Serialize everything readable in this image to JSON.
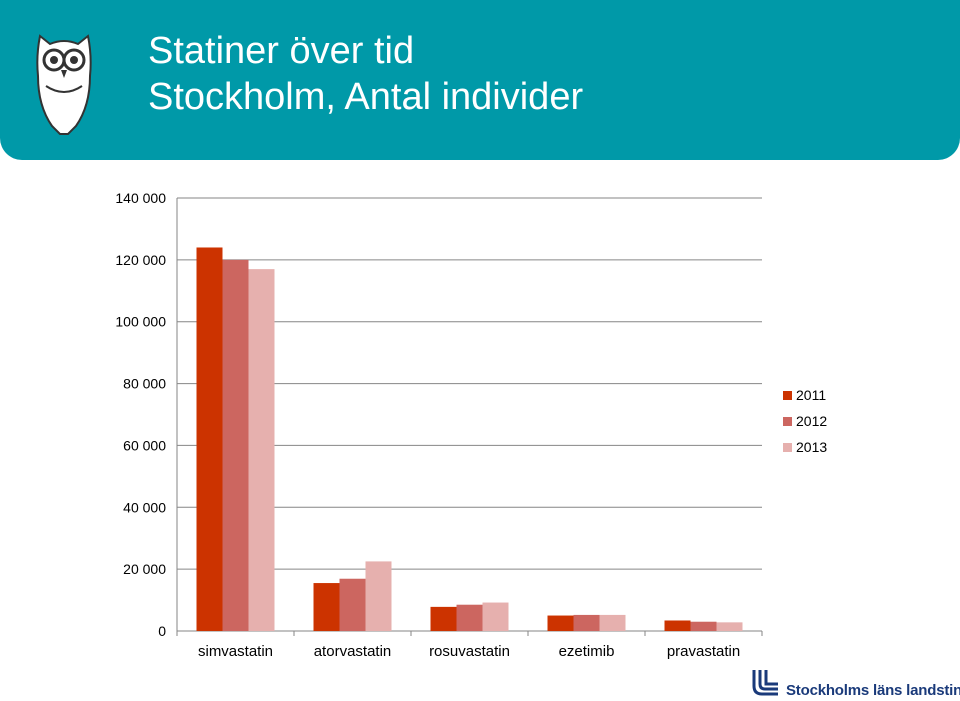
{
  "header": {
    "title_line1": "Statiner över tid",
    "title_line2": "Stockholm, Antal individer",
    "bg_color": "#0099a8"
  },
  "logo": {
    "text": "Stockholms läns landsting",
    "color": "#1a3a7a"
  },
  "chart_data": {
    "type": "bar",
    "categories": [
      "simvastatin",
      "atorvastatin",
      "rosuvastatin",
      "ezetimib",
      "pravastatin"
    ],
    "series": [
      {
        "name": "2011",
        "color": "#cc3300",
        "values": [
          124000,
          15500,
          7800,
          5000,
          3400
        ]
      },
      {
        "name": "2012",
        "color": "#cc6660",
        "values": [
          120000,
          16900,
          8500,
          5200,
          3000
        ]
      },
      {
        "name": "2013",
        "color": "#e6b0ae",
        "values": [
          117000,
          22500,
          9200,
          5200,
          2800
        ]
      }
    ],
    "yticks": [
      {
        "value": 0,
        "label": "0"
      },
      {
        "value": 20000,
        "label": "20 000"
      },
      {
        "value": 40000,
        "label": "40 000"
      },
      {
        "value": 60000,
        "label": "60 000"
      },
      {
        "value": 80000,
        "label": "80 000"
      },
      {
        "value": 100000,
        "label": "100 000"
      },
      {
        "value": 120000,
        "label": "120 000"
      },
      {
        "value": 140000,
        "label": "140 000"
      }
    ],
    "ylim": [
      0,
      140000
    ],
    "grid": true,
    "legend_position": "right"
  }
}
